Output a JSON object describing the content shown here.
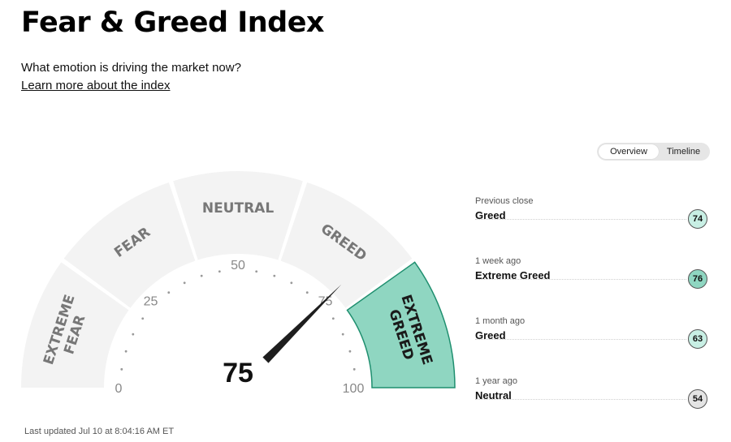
{
  "header": {
    "title": "Fear & Greed Index",
    "subtitle": "What emotion is driving the market now?",
    "learn_more": "Learn more about the index"
  },
  "view_toggle": {
    "options": [
      "Overview",
      "Timeline"
    ],
    "selected": "Overview"
  },
  "gauge": {
    "score": 75,
    "score_label": "75",
    "active_segment": "extreme-greed",
    "active_color": "#8fd6c1",
    "segment_color": "#f3f3f3",
    "segments": [
      {
        "id": "extreme-fear",
        "lines": [
          "EXTREME",
          "FEAR"
        ]
      },
      {
        "id": "fear",
        "lines": [
          "FEAR"
        ]
      },
      {
        "id": "neutral",
        "lines": [
          "NEUTRAL"
        ]
      },
      {
        "id": "greed",
        "lines": [
          "GREED"
        ]
      },
      {
        "id": "extreme-greed",
        "lines": [
          "EXTREME",
          "GREED"
        ]
      }
    ],
    "scale_labels": [
      "0",
      "25",
      "50",
      "75",
      "100"
    ]
  },
  "history": [
    {
      "when": "Previous close",
      "rating": "Greed",
      "value": "74",
      "badge_color": "#c8efe4"
    },
    {
      "when": "1 week ago",
      "rating": "Extreme Greed",
      "value": "76",
      "badge_color": "#8fd6c1"
    },
    {
      "when": "1 month ago",
      "rating": "Greed",
      "value": "63",
      "badge_color": "#c8efe4"
    },
    {
      "when": "1 year ago",
      "rating": "Neutral",
      "value": "54",
      "badge_color": "#e4e4e4"
    }
  ],
  "footer": {
    "last_updated": "Last updated Jul 10 at 8:04:16 AM ET"
  }
}
